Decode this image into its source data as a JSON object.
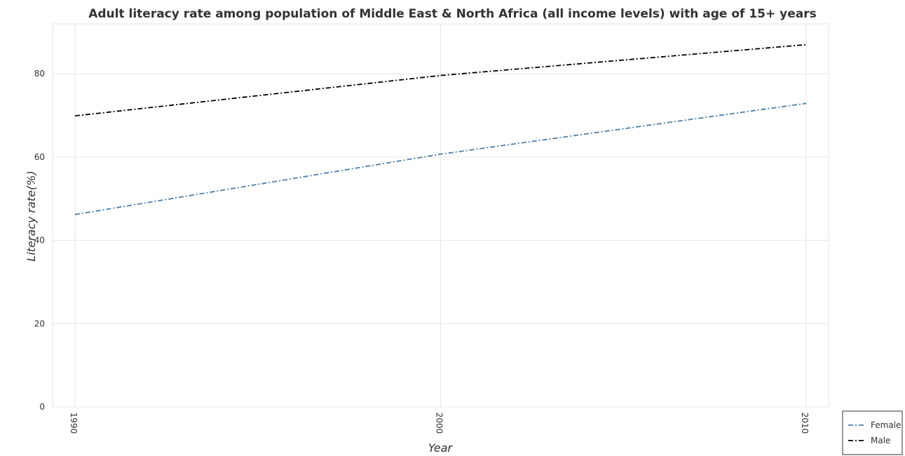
{
  "chart_data": {
    "type": "line",
    "title": "Adult literacy rate among population of Middle East & North Africa (all income levels) with age of 15+ years",
    "xlabel": "Year",
    "ylabel": "Literacy rate(%)",
    "x": [
      "1990",
      "2000",
      "2010"
    ],
    "series": [
      {
        "name": "Female",
        "values": [
          46.2,
          60.7,
          72.9
        ],
        "color": "#4a7fa8",
        "dash": "dash-dot"
      },
      {
        "name": "Male",
        "values": [
          69.9,
          79.6,
          87.0
        ],
        "color": "#000000",
        "dash": "dash-dot"
      }
    ],
    "ylim": [
      0,
      92
    ],
    "yticks": [
      0,
      20,
      40,
      60,
      80
    ],
    "grid": true,
    "legend_position": "bottom-right"
  }
}
